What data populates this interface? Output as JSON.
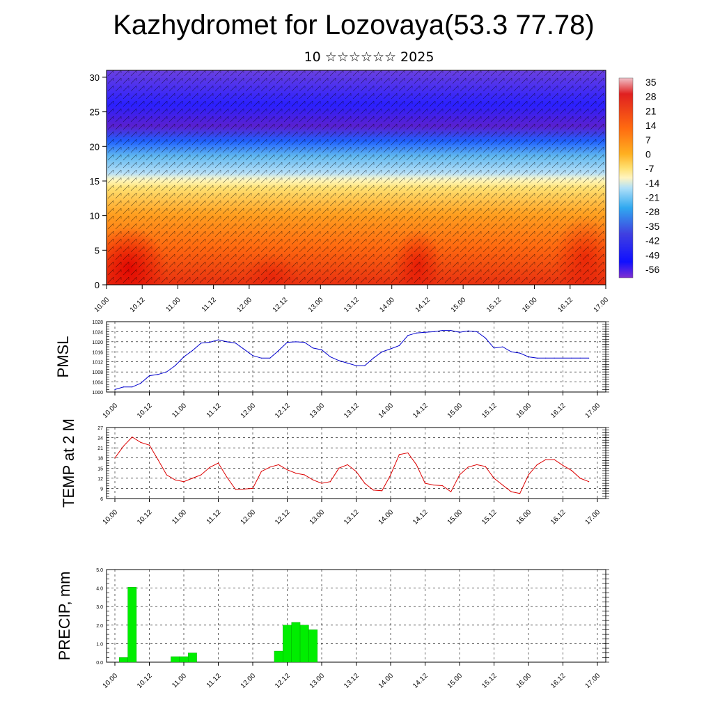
{
  "title": "Kazhydromet for Lozovaya(53.3 77.78)",
  "subtitle": "10 ☆☆☆☆☆☆ 2025",
  "chart_data": [
    {
      "type": "heatmap",
      "name": "cross-section",
      "ylabel": "",
      "ylim": [
        0,
        31
      ],
      "yticks": [
        0,
        5,
        10,
        15,
        20,
        25,
        30
      ],
      "xticks": [
        "10.00",
        "10.12",
        "11.00",
        "11.12",
        "12.00",
        "12.12",
        "13.00",
        "13.12",
        "14.00",
        "14.12",
        "15.00",
        "15.12",
        "16.00",
        "16.12",
        "17.00"
      ],
      "colorbar_labels": [
        "35",
        "28",
        "21",
        "14",
        "7",
        "0",
        "-7",
        "-14",
        "-21",
        "-28",
        "-35",
        "-42",
        "-49",
        "-56"
      ],
      "colors": {
        "warm_core": "#e60000",
        "orange": "#ff8000",
        "yellow": "#ffe060",
        "light_blue": "#80c8f0",
        "cyan": "#20a0f0",
        "blue": "#2020ff",
        "purple": "#7020c0"
      }
    },
    {
      "type": "line",
      "name": "pmsl",
      "ylabel": "PMSL",
      "ylim": [
        1000,
        1028
      ],
      "yticks": [
        "1000",
        "1004",
        "1008",
        "1012",
        "1016",
        "1020",
        "1024",
        "1028"
      ],
      "xticks": [
        "10.00",
        "10.12",
        "11.00",
        "11.12",
        "12.00",
        "12.12",
        "13.00",
        "13.12",
        "14.00",
        "14.12",
        "15.00",
        "15.12",
        "16.00",
        "16.12",
        "17.00"
      ],
      "color": "#0000cc",
      "x": [
        0,
        3,
        6,
        9,
        12,
        15,
        18,
        21,
        24,
        27,
        30,
        33,
        36,
        39,
        42,
        45,
        48,
        51,
        54,
        57,
        60,
        63,
        66,
        69,
        72,
        75,
        78,
        81,
        84,
        87,
        90,
        93,
        96,
        99,
        102,
        105,
        108,
        111,
        114,
        117,
        120,
        123,
        126,
        129,
        132,
        135,
        138,
        141,
        144,
        147,
        150,
        153,
        156,
        159,
        162,
        165
      ],
      "values": [
        1001,
        1002,
        1002,
        1003.5,
        1006.5,
        1007,
        1008,
        1010.5,
        1014,
        1016.5,
        1019.5,
        1019.8,
        1020.8,
        1020,
        1019.5,
        1017,
        1014.5,
        1013.5,
        1013.5,
        1016.5,
        1019.8,
        1020,
        1019.8,
        1017.5,
        1016.8,
        1014,
        1012.5,
        1011.5,
        1010.5,
        1010.5,
        1013.5,
        1016,
        1017.2,
        1018.5,
        1022.5,
        1023.5,
        1023.8,
        1024,
        1024.5,
        1024.5,
        1023.8,
        1024.3,
        1024,
        1021.5,
        1017.5,
        1018,
        1016,
        1015.5,
        1014,
        1013.5,
        1013.5,
        1013.5,
        1013.5,
        1013.5,
        1013.5,
        1013.5
      ]
    },
    {
      "type": "line",
      "name": "temp",
      "ylabel": "TEMP at 2 M",
      "ylim": [
        6,
        27
      ],
      "yticks": [
        "6",
        "9",
        "12",
        "15",
        "18",
        "21",
        "24",
        "27"
      ],
      "xticks": [
        "10.00",
        "10.12",
        "11.00",
        "11.12",
        "12.00",
        "12.12",
        "13.00",
        "13.12",
        "14.00",
        "14.12",
        "15.00",
        "15.12",
        "16.00",
        "16.12",
        "17.00"
      ],
      "color": "#dd0000",
      "x": [
        0,
        3,
        6,
        9,
        12,
        15,
        18,
        21,
        24,
        27,
        30,
        33,
        36,
        39,
        42,
        45,
        48,
        51,
        54,
        57,
        60,
        63,
        66,
        69,
        72,
        75,
        78,
        81,
        84,
        87,
        90,
        93,
        96,
        99,
        102,
        105,
        108,
        111,
        114,
        117,
        120,
        123,
        126,
        129,
        132,
        135,
        138,
        141,
        144,
        147,
        150,
        153,
        156,
        159,
        162,
        165
      ],
      "values": [
        18,
        21.5,
        24.2,
        22.6,
        21.8,
        17.5,
        13,
        11.5,
        11,
        12,
        13,
        15.2,
        16.5,
        12.3,
        8.7,
        8.8,
        9,
        14,
        15.3,
        16,
        14.5,
        13.5,
        13,
        11.5,
        10.5,
        11,
        15,
        16,
        14,
        10.5,
        8.5,
        8.3,
        13,
        19,
        19.5,
        16,
        10.5,
        10,
        9.8,
        8,
        13,
        15.3,
        16,
        15.5,
        12,
        10,
        8,
        7.5,
        13,
        16,
        17.5,
        17.5,
        15.8,
        14.3,
        12,
        11
      ]
    },
    {
      "type": "bar",
      "name": "precip",
      "ylabel": "PRECIP, mm",
      "ylim": [
        0,
        5
      ],
      "yticks": [
        "0.0",
        "1.0",
        "2.0",
        "3.0",
        "4.0",
        "5.0"
      ],
      "xticks": [
        "10.00",
        "10.12",
        "11.00",
        "11.12",
        "12.00",
        "12.12",
        "13.00",
        "13.12",
        "14.00",
        "14.12",
        "15.00",
        "15.12",
        "16.00",
        "16.12",
        "17.00"
      ],
      "color": "#00ee00",
      "x": [
        3,
        6,
        21,
        24,
        27,
        57,
        60,
        63,
        66,
        69
      ],
      "values": [
        0.25,
        4.05,
        0.3,
        0.3,
        0.5,
        0.6,
        2.0,
        2.15,
        2.0,
        1.75
      ]
    }
  ]
}
